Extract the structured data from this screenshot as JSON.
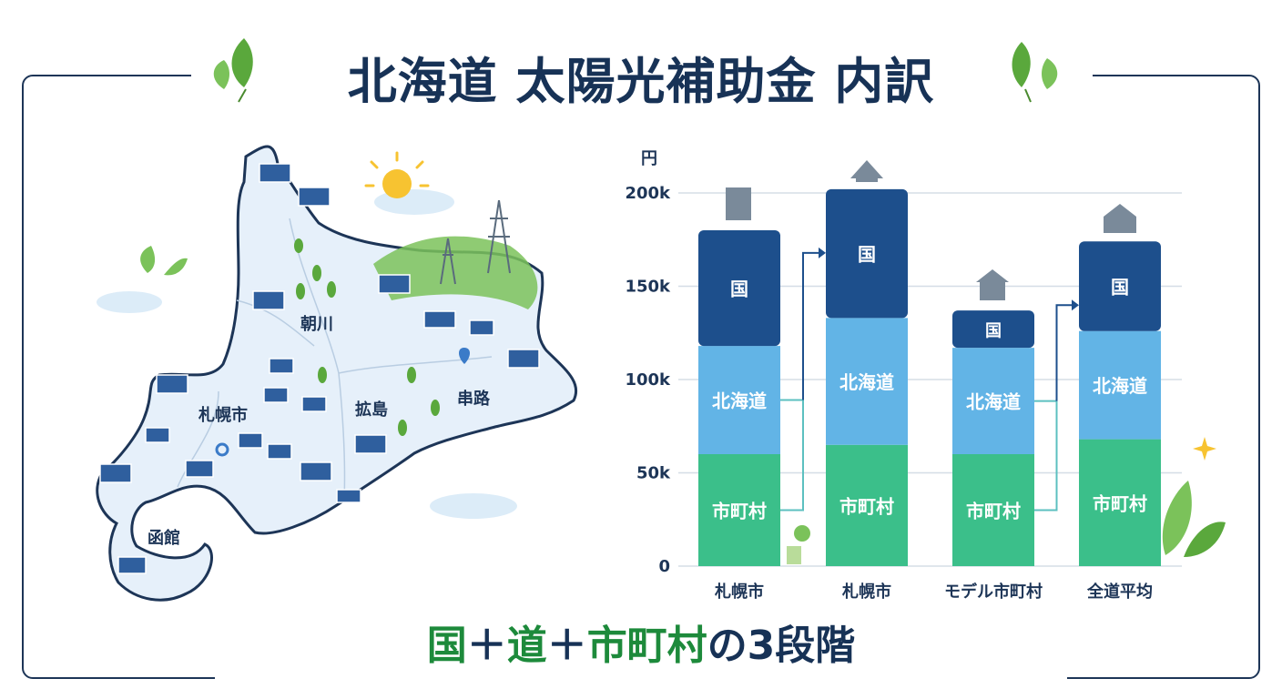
{
  "title": "北海道 太陽光補助金 内訳",
  "bottom_caption": {
    "part1": "国",
    "plus1": "＋",
    "part2": "道",
    "plus2": "＋",
    "part3": "市町村",
    "suffix": "の3段階"
  },
  "map": {
    "labels": [
      "朝川",
      "札幌市",
      "拡島",
      "串路",
      "函館"
    ]
  },
  "colors": {
    "kuni": "#1d4f8c",
    "hokkaido": "#5cb2e3",
    "shichoson": "#3bbf8a",
    "title": "#173256",
    "accent_green": "#1d8a3b"
  },
  "chart_data": {
    "type": "bar",
    "stacked": true,
    "ylabel": "円",
    "ylim": [
      0,
      200000
    ],
    "yticks": [
      0,
      50000,
      100000,
      150000,
      200000
    ],
    "ytick_labels": [
      "0",
      "50k",
      "100k",
      "150k",
      "200k"
    ],
    "grid": true,
    "categories": [
      "札幌市",
      "札幌市",
      "モデル市町村",
      "全道平均"
    ],
    "series": [
      {
        "name": "市町村",
        "values": [
          60000,
          65000,
          60000,
          68000
        ]
      },
      {
        "name": "北海道",
        "values": [
          58000,
          68000,
          57000,
          58000
        ]
      },
      {
        "name": "国",
        "values": [
          62000,
          69000,
          20000,
          48000
        ]
      }
    ]
  }
}
